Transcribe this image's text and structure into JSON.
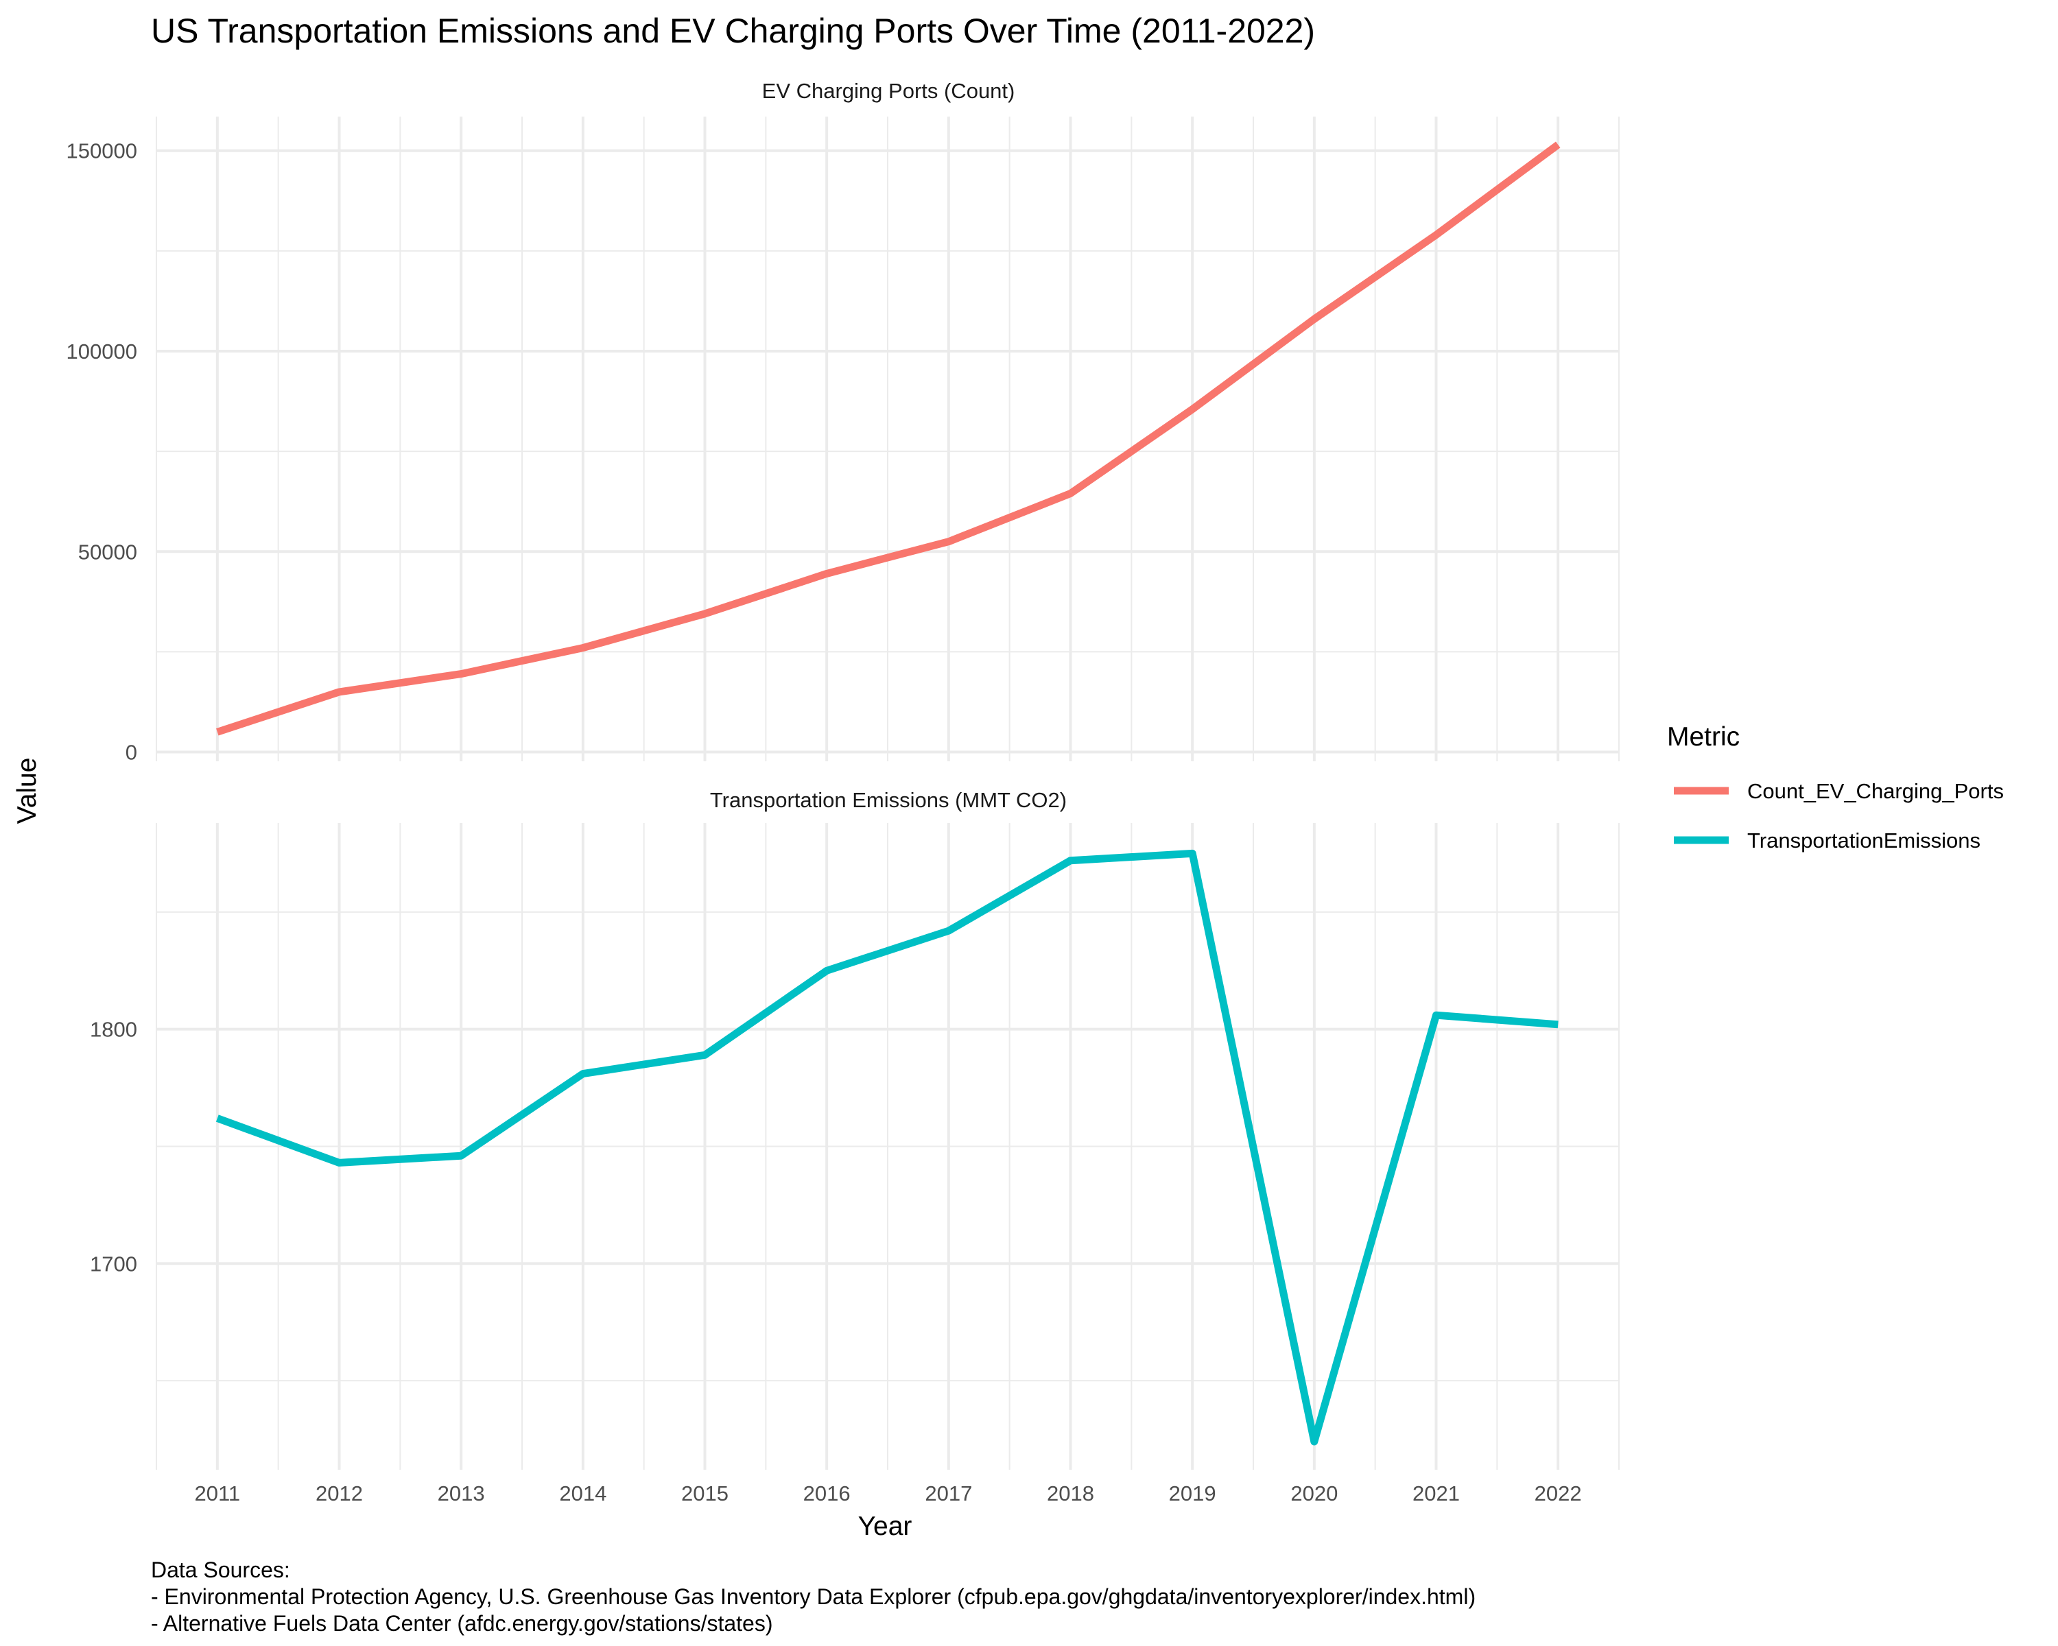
{
  "chart_data": {
    "type": "line",
    "title": "US Transportation Emissions and EV Charging Ports Over Time (2011-2022)",
    "xlabel": "Year",
    "ylabel": "Value",
    "x": [
      2011,
      2012,
      2013,
      2014,
      2015,
      2016,
      2017,
      2018,
      2019,
      2020,
      2021,
      2022
    ],
    "x_tick_labels": [
      "2011",
      "2012",
      "2013",
      "2014",
      "2015",
      "2016",
      "2017",
      "2018",
      "2019",
      "2020",
      "2021",
      "2022"
    ],
    "grid": true,
    "legend": {
      "title": "Metric",
      "placement": "right",
      "entries": [
        {
          "name": "Count_EV_Charging_Ports",
          "color": "#F8766D"
        },
        {
          "name": "TransportationEmissions",
          "color": "#00BFC4"
        }
      ]
    },
    "panels": [
      {
        "strip_label": "EV Charging Ports (Count)",
        "series_name": "Count_EV_Charging_Ports",
        "color": "#F8766D",
        "values": [
          5000,
          15000,
          19500,
          26000,
          34500,
          44500,
          52500,
          64500,
          85500,
          108000,
          129000,
          151500
        ],
        "ylim": [
          -2300,
          158500
        ],
        "y_major_ticks": [
          0,
          50000,
          100000,
          150000
        ],
        "y_tick_labels": [
          "0",
          "50000",
          "100000",
          "150000"
        ]
      },
      {
        "strip_label": "Transportation Emissions (MMT CO2)",
        "series_name": "TransportationEmissions",
        "color": "#00BFC4",
        "values": [
          1762,
          1743,
          1746,
          1781,
          1789,
          1825,
          1842,
          1872,
          1875,
          1624,
          1806,
          1802
        ],
        "ylim": [
          1612,
          1888
        ],
        "y_major_ticks": [
          1700,
          1800
        ],
        "y_tick_labels": [
          "1700",
          "1800"
        ]
      }
    ]
  },
  "caption": {
    "lines": [
      "Data Sources:",
      "- Environmental Protection Agency, U.S. Greenhouse Gas Inventory Data Explorer (cfpub.epa.gov/ghgdata/inventoryexplorer/index.html)",
      "- Alternative Fuels Data Center (afdc.energy.gov/stations/states)"
    ]
  }
}
